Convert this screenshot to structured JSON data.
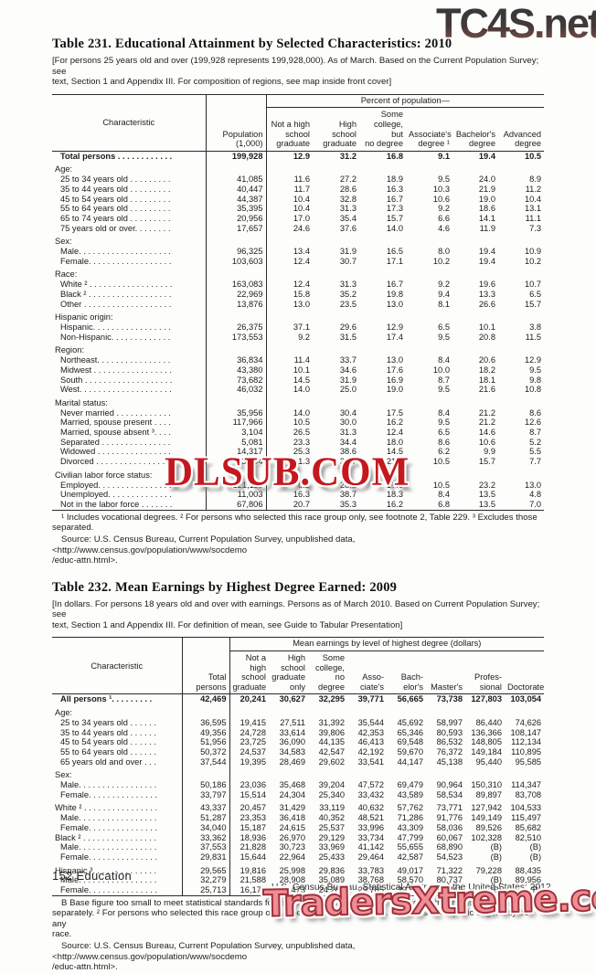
{
  "page": {
    "footer_left": "152  Education",
    "footer_right": "U.S. Census Bureau, Statistical Abstract of the United States: 2012"
  },
  "watermarks": {
    "top": "TC4S.net",
    "middle": "DLSUB.COM",
    "bottom": "TradersXtreme.com",
    "top_color": "#3a3a3a",
    "middle_color": "#c4181e",
    "bottom_color": "#ee8d94"
  },
  "table231": {
    "title": "Table 231. Educational Attainment by Selected Characteristics: 2010",
    "bracket_note": "[For persons 25 years old and over (199,928 represents 199,928,000). As of March. Based on the Current Population Survey; see\ntext, Section 1 and Appendix III. For composition of regions, see map inside front cover]",
    "header": {
      "characteristic": "Characteristic",
      "population": "Population\n(1,000)",
      "spanner": "Percent of population—",
      "cols": [
        "Not a high\nschool\ngraduate",
        "High school\ngraduate",
        "Some\ncollege, but\nno degree",
        "Associate's\ndegree ¹",
        "Bachelor's\ndegree",
        "Advanced\ndegree"
      ]
    },
    "value_cols": 7,
    "rows": [
      {
        "label": "Total persons . . . . . . . . . . . .",
        "type": "total",
        "values": [
          "199,928",
          "12.9",
          "31.2",
          "16.8",
          "9.1",
          "19.4",
          "10.5"
        ]
      },
      {
        "label": "Age:",
        "type": "group",
        "gap": true,
        "values": []
      },
      {
        "label": "25 to 34 years old . . . . . . . . .",
        "values": [
          "41,085",
          "11.6",
          "27.2",
          "18.9",
          "9.5",
          "24.0",
          "8.9"
        ]
      },
      {
        "label": "35 to 44 years old . . . . . . . . .",
        "values": [
          "40,447",
          "11.7",
          "28.6",
          "16.3",
          "10.3",
          "21.9",
          "11.2"
        ]
      },
      {
        "label": "45 to 54 years old . . . . . . . . .",
        "values": [
          "44,387",
          "10.4",
          "32.8",
          "16.7",
          "10.6",
          "19.0",
          "10.4"
        ]
      },
      {
        "label": "55 to 64 years old . . . . . . . . .",
        "values": [
          "35,395",
          "10.4",
          "31.3",
          "17.3",
          "9.2",
          "18.6",
          "13.1"
        ]
      },
      {
        "label": "65 to 74 years old . . . . . . . . .",
        "values": [
          "20,956",
          "17.0",
          "35.4",
          "15.7",
          "6.6",
          "14.1",
          "11.1"
        ]
      },
      {
        "label": "75 years old or over. . . . . . . .",
        "values": [
          "17,657",
          "24.6",
          "37.6",
          "14.0",
          "4.6",
          "11.9",
          "7.3"
        ]
      },
      {
        "label": "Sex:",
        "type": "group",
        "gap": true,
        "values": []
      },
      {
        "label": "Male. . . . . . . . . . . . . . . . . . . .",
        "values": [
          "96,325",
          "13.4",
          "31.9",
          "16.5",
          "8.0",
          "19.4",
          "10.9"
        ]
      },
      {
        "label": "Female. . . . . . . . . . . . . . . . . .",
        "values": [
          "103,603",
          "12.4",
          "30.7",
          "17.1",
          "10.2",
          "19.4",
          "10.2"
        ]
      },
      {
        "label": "Race:",
        "type": "group",
        "gap": true,
        "values": []
      },
      {
        "label": "White ² . . . . . . . . . . . . . . . . . .",
        "values": [
          "163,083",
          "12.4",
          "31.3",
          "16.7",
          "9.2",
          "19.6",
          "10.7"
        ]
      },
      {
        "label": "Black ² . . . . . . . . . . . . . . . . . .",
        "values": [
          "22,969",
          "15.8",
          "35.2",
          "19.8",
          "9.4",
          "13.3",
          "6.5"
        ]
      },
      {
        "label": "Other . . . . . . . . . . . . . . . . . . .",
        "values": [
          "13,876",
          "13.0",
          "23.5",
          "13.0",
          "8.1",
          "26.6",
          "15.7"
        ]
      },
      {
        "label": "Hispanic origin:",
        "type": "group",
        "gap": true,
        "values": []
      },
      {
        "label": "Hispanic. . . . . . . . . . . . . . . . .",
        "values": [
          "26,375",
          "37.1",
          "29.6",
          "12.9",
          "6.5",
          "10.1",
          "3.8"
        ]
      },
      {
        "label": "Non-Hispanic. . . . . . . . . . . . .",
        "values": [
          "173,553",
          "9.2",
          "31.5",
          "17.4",
          "9.5",
          "20.8",
          "11.5"
        ]
      },
      {
        "label": "Region:",
        "type": "group",
        "gap": true,
        "values": []
      },
      {
        "label": "Northeast. . . . . . . . . . . . . . . .",
        "values": [
          "36,834",
          "11.4",
          "33.7",
          "13.0",
          "8.4",
          "20.6",
          "12.9"
        ]
      },
      {
        "label": "Midwest . . . . . . . . . . . . . . . . .",
        "values": [
          "43,380",
          "10.1",
          "34.6",
          "17.6",
          "10.0",
          "18.2",
          "9.5"
        ]
      },
      {
        "label": "South . . . . . . . . . . . . . . . . . . .",
        "values": [
          "73,682",
          "14.5",
          "31.9",
          "16.9",
          "8.7",
          "18.1",
          "9.8"
        ]
      },
      {
        "label": "West. . . . . . . . . . . . . . . . . . . .",
        "values": [
          "46,032",
          "14.0",
          "25.0",
          "19.0",
          "9.5",
          "21.6",
          "10.8"
        ]
      },
      {
        "label": "Marital status:",
        "type": "group",
        "gap": true,
        "values": []
      },
      {
        "label": "Never married . . . . . . . . . . . .",
        "values": [
          "35,956",
          "14.0",
          "30.4",
          "17.5",
          "8.4",
          "21.2",
          "8.6"
        ]
      },
      {
        "label": "Married, spouse present . . . .",
        "values": [
          "117,966",
          "10.5",
          "30.0",
          "16.2",
          "9.5",
          "21.2",
          "12.6"
        ]
      },
      {
        "label": "Married, spouse absent ³. . . .",
        "values": [
          "3,104",
          "26.5",
          "31.3",
          "12.4",
          "6.5",
          "14.6",
          "8.7"
        ]
      },
      {
        "label": "Separated . . . . . . . . . . . . . . .",
        "values": [
          "5,081",
          "23.3",
          "34.4",
          "18.0",
          "8.6",
          "10.6",
          "5.2"
        ]
      },
      {
        "label": "Widowed . . . . . . . . . . . . . . . .",
        "values": [
          "14,317",
          "25.3",
          "38.6",
          "14.5",
          "6.2",
          "9.9",
          "5.5"
        ]
      },
      {
        "label": "Divorced . . . . . . . . . . . . . . . .",
        "values": [
          "23,504",
          "11.3",
          "33.7",
          "21.0",
          "10.5",
          "15.7",
          "7.7"
        ]
      },
      {
        "label": "Civilian labor force status:",
        "type": "group",
        "gap": true,
        "values": []
      },
      {
        "label": "Employed. . . . . . . . . . . . . . . .",
        "values": [
          "121,119",
          "8.2",
          "28.2",
          "17.0",
          "10.5",
          "23.2",
          "13.0"
        ]
      },
      {
        "label": "Unemployed. . . . . . . . . . . . . .",
        "values": [
          "11,003",
          "16.3",
          "38.7",
          "18.3",
          "8.4",
          "13.5",
          "4.8"
        ]
      },
      {
        "label": "Not in the labor force . . . . . . .",
        "values": [
          "67,806",
          "20.7",
          "35.3",
          "16.2",
          "6.8",
          "13.5",
          "7.0"
        ]
      }
    ],
    "footnote": "¹ Includes vocational degrees. ² For persons who selected this race group only, see footnote 2, Table 229. ³ Excludes those\nseparated.",
    "source": "Source: U.S. Census Bureau, Current Population Survey, unpublished data, <http://www.census.gov/population/www/socdemo\n/educ-attn.html>."
  },
  "table232": {
    "title": "Table 232. Mean Earnings by Highest Degree Earned: 2009",
    "bracket_note": "[In dollars. For persons 18 years old and over with earnings. Persons as of March 2010. Based on Current Population Survey; see\ntext, Section 1 and  Appendix III. For definition of mean, see Guide to Tabular Presentation]",
    "header": {
      "characteristic": "Characteristic",
      "population": "Total\npersons",
      "spanner": "Mean earnings by level of highest degree (dollars)",
      "cols": [
        "Not a\nhigh\nschool\ngraduate",
        "High\nschool\ngraduate\nonly",
        "Some\ncollege,\nno\ndegree",
        "Asso-\nciate's",
        "Bach-\nelor's",
        "Master's",
        "Profes-\nsional",
        "Doctorate"
      ]
    },
    "value_cols": 9,
    "rows": [
      {
        "label": "All persons ¹. . . . . . . . .",
        "type": "total",
        "values": [
          "42,469",
          "20,241",
          "30,627",
          "32,295",
          "39,771",
          "56,665",
          "73,738",
          "127,803",
          "103,054"
        ]
      },
      {
        "label": "Age:",
        "type": "group",
        "gap": true,
        "values": []
      },
      {
        "label": "25 to 34 years old . . . . . .",
        "values": [
          "36,595",
          "19,415",
          "27,511",
          "31,392",
          "35,544",
          "45,692",
          "58,997",
          "86,440",
          "74,626"
        ]
      },
      {
        "label": "35 to 44 years old . . . . . .",
        "values": [
          "49,356",
          "24,728",
          "33,614",
          "39,806",
          "42,353",
          "65,346",
          "80,593",
          "136,366",
          "108,147"
        ]
      },
      {
        "label": "45 to 54 years old . . . . . .",
        "values": [
          "51,956",
          "23,725",
          "36,090",
          "44,135",
          "46,413",
          "69,548",
          "86,532",
          "148,805",
          "112,134"
        ]
      },
      {
        "label": "55 to 64 years old . . . . . .",
        "values": [
          "50,372",
          "24,537",
          "34,583",
          "42,547",
          "42,192",
          "59,670",
          "76,372",
          "149,184",
          "110,895"
        ]
      },
      {
        "label": "65 years old and over  . . .",
        "values": [
          "37,544",
          "19,395",
          "28,469",
          "29,602",
          "33,541",
          "44,147",
          "45,138",
          "95,440",
          "95,585"
        ]
      },
      {
        "label": "Sex:",
        "type": "group",
        "gap": true,
        "values": []
      },
      {
        "label": "Male. . . . . . . . . . . . . . . . .",
        "values": [
          "50,186",
          "23,036",
          "35,468",
          "39,204",
          "47,572",
          "69,479",
          "90,964",
          "150,310",
          "114,347"
        ]
      },
      {
        "label": "Female. . . . . . . . . . . . . . .",
        "values": [
          "33,797",
          "15,514",
          "24,304",
          "25,340",
          "33,432",
          "43,589",
          "58,534",
          "89,897",
          "83,708"
        ]
      },
      {
        "label": "White ² . . . . . . . . . . . . . . . .",
        "type": "race",
        "gap": true,
        "values": [
          "43,337",
          "20,457",
          "31,429",
          "33,119",
          "40,632",
          "57,762",
          "73,771",
          "127,942",
          "104,533"
        ]
      },
      {
        "label": "Male. . . . . . . . . . . . . . . . .",
        "values": [
          "51,287",
          "23,353",
          "36,418",
          "40,352",
          "48,521",
          "71,286",
          "91,776",
          "149,149",
          "115,497"
        ]
      },
      {
        "label": "Female. . . . . . . . . . . . . . .",
        "values": [
          "34,040",
          "15,187",
          "24,615",
          "25,537",
          "33,996",
          "43,309",
          "58,036",
          "89,526",
          "85,682"
        ]
      },
      {
        "label": "Black ² . . . . . . . . . . . . . . . .",
        "type": "race",
        "values": [
          "33,362",
          "18,936",
          "26,970",
          "29,129",
          "33,734",
          "47,799",
          "60,067",
          "102,328",
          "82,510"
        ]
      },
      {
        "label": "Male. . . . . . . . . . . . . . . . .",
        "values": [
          "37,553",
          "21,828",
          "30,723",
          "33,969",
          "41,142",
          "55,655",
          "68,890",
          "(B)",
          "(B)"
        ]
      },
      {
        "label": "Female. . . . . . . . . . . . . . .",
        "values": [
          "29,831",
          "15,644",
          "22,964",
          "25,433",
          "29,464",
          "42,587",
          "54,523",
          "(B)",
          "(B)"
        ]
      },
      {
        "label": "Hispanic ³. . . . . . . . . . . . . .",
        "type": "race",
        "gap": true,
        "values": [
          "29,565",
          "19,816",
          "25,998",
          "29,836",
          "33,783",
          "49,017",
          "71,322",
          "79,228",
          "88,435"
        ]
      },
      {
        "label": "Male. . . . . . . . . . . . . . . . .",
        "values": [
          "32,279",
          "21,588",
          "28,908",
          "35,089",
          "38,768",
          "58,570",
          "80,737",
          "(B)",
          "89,956"
        ]
      },
      {
        "label": "Female. . . . . . . . . . . . . . .",
        "values": [
          "25,713",
          "16,170",
          "21,473",
          "24,281",
          "29,785",
          "39,566",
          "61,843",
          "(B)",
          "(B)"
        ]
      }
    ],
    "footnote": "B Base figure too small to meet statistical standards for reliability of a derived figure. ¹ Includes other races not shown\nseparately. ² For persons who selected this race group only. See footnote 2, Table 229. ³ Persons of Hispanic origin may be any\nrace.",
    "source": "Source: U.S. Census Bureau, Current Population Survey, unpublished data, <http://www.census.gov/population/www/socdemo\n/educ-attn.html>."
  }
}
